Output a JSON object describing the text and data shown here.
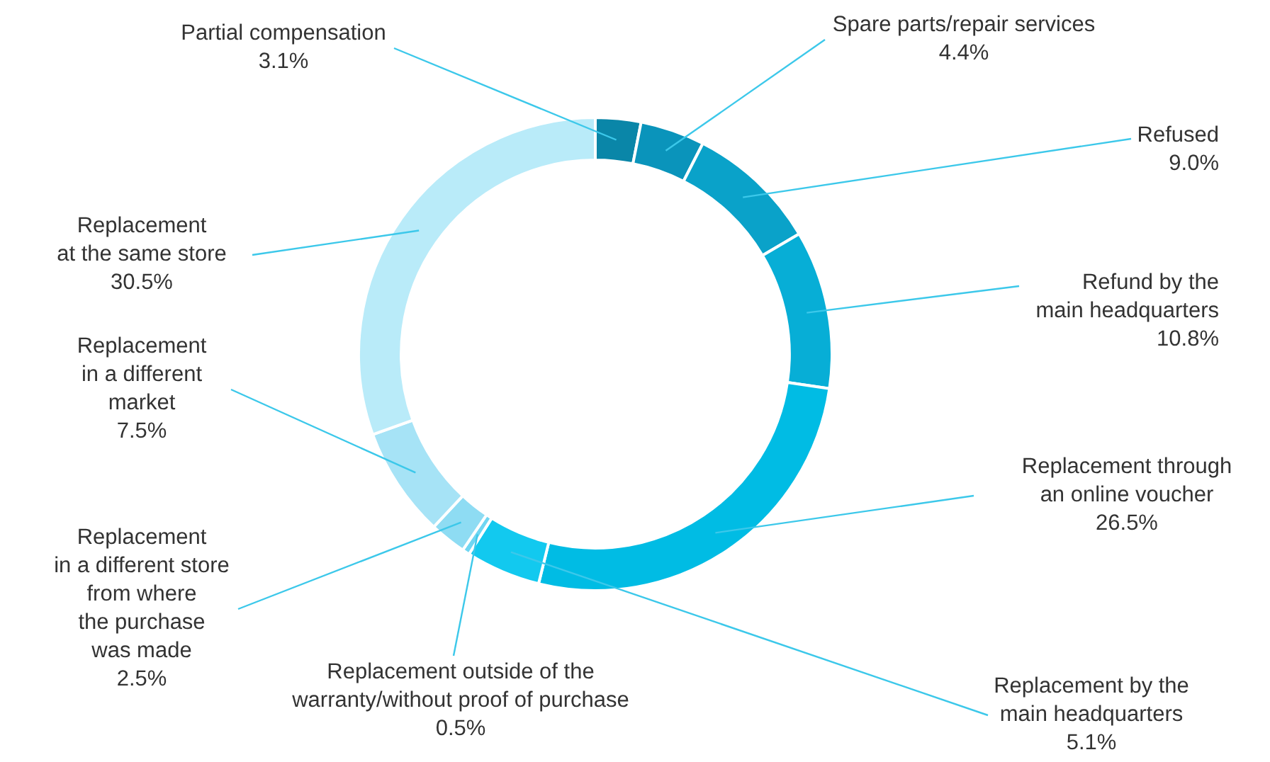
{
  "chart_data": {
    "type": "donut",
    "categories": [
      "Partial compensation",
      "Spare parts/repair services",
      "Refused",
      "Refund by the\nmain headquarters",
      "Replacement through\nan online voucher",
      "Replacement by the\nmain headquarters",
      "Replacement outside of the\nwarranty/without proof of purchase",
      "Replacement\nin a different store\nfrom where\nthe purchase\nwas made",
      "Replacement\nin a different\nmarket",
      "Replacement\nat the same store"
    ],
    "values": [
      3.1,
      4.4,
      9.0,
      10.8,
      26.5,
      5.1,
      0.5,
      2.5,
      7.5,
      30.5
    ],
    "value_labels": [
      "3.1%",
      "4.4%",
      "9.0%",
      "10.8%",
      "26.5%",
      "5.1%",
      "0.5%",
      "2.5%",
      "7.5%",
      "30.5%"
    ],
    "colors": [
      "#0a86a8",
      "#0a94bb",
      "#0aa2c9",
      "#07aed6",
      "#00bce4",
      "#12c9ef",
      "#6fd6f2",
      "#8edcf3",
      "#a6e3f6",
      "#b9ebf9"
    ]
  }
}
